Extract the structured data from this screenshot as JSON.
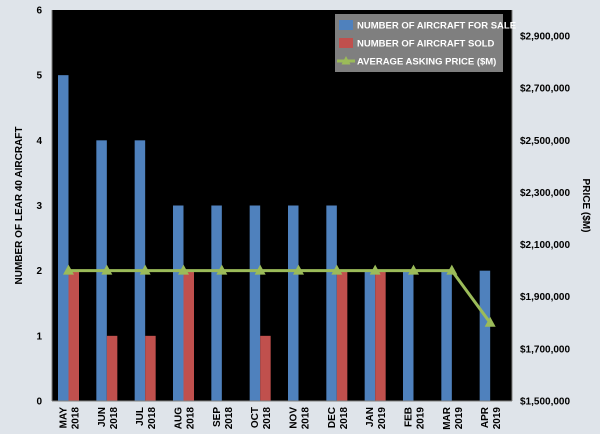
{
  "chart_data": {
    "type": "bar",
    "categories": [
      [
        "MAY",
        "2018"
      ],
      [
        "JUN",
        "2018"
      ],
      [
        "JUL",
        "2018"
      ],
      [
        "AUG",
        "2018"
      ],
      [
        "SEP",
        "2018"
      ],
      [
        "OCT",
        "2018"
      ],
      [
        "NOV",
        "2018"
      ],
      [
        "DEC",
        "2018"
      ],
      [
        "JAN",
        "2019"
      ],
      [
        "FEB",
        "2019"
      ],
      [
        "MAR",
        "2019"
      ],
      [
        "APR",
        "2019"
      ]
    ],
    "series": [
      {
        "name": "NUMBER OF AIRCRAFT FOR SALE",
        "kind": "bar",
        "axis": "left",
        "color": "#4f81bd",
        "values": [
          5,
          4,
          4,
          3,
          3,
          3,
          3,
          3,
          2,
          2,
          2,
          2
        ]
      },
      {
        "name": "NUMBER OF AIRCRAFT SOLD",
        "kind": "bar",
        "axis": "left",
        "color": "#c0504d",
        "values": [
          2,
          1,
          1,
          2,
          0,
          1,
          0,
          2,
          2,
          0,
          0,
          0
        ]
      },
      {
        "name": "AVERAGE ASKING PRICE ($M)",
        "kind": "line",
        "axis": "right",
        "color": "#9bbb59",
        "values": [
          2000000,
          2000000,
          2000000,
          2000000,
          2000000,
          2000000,
          2000000,
          2000000,
          2000000,
          2000000,
          2000000,
          1800000
        ]
      }
    ],
    "ylabel": "NUMBER OF LEAR 40 AIRCRAFT",
    "y2label": "PRICE ($M)",
    "ylim": [
      0,
      6
    ],
    "yticks": [
      "0",
      "1",
      "2",
      "3",
      "4",
      "5",
      "6"
    ],
    "y2lim": [
      1500000,
      3000000
    ],
    "y2ticks": [
      {
        "value": 1500000,
        "label": "$1,500,000"
      },
      {
        "value": 1700000,
        "label": "$1,700,000"
      },
      {
        "value": 1900000,
        "label": "$1,900,000"
      },
      {
        "value": 2100000,
        "label": "$2,100,000"
      },
      {
        "value": 2300000,
        "label": "$2,300,000"
      },
      {
        "value": 2500000,
        "label": "$2,500,000"
      },
      {
        "value": 2700000,
        "label": "$2,700,000"
      },
      {
        "value": 2900000,
        "label": "$2,900,000"
      }
    ],
    "grid": false,
    "legend_position": "top-right",
    "plot_background": "#000000"
  }
}
